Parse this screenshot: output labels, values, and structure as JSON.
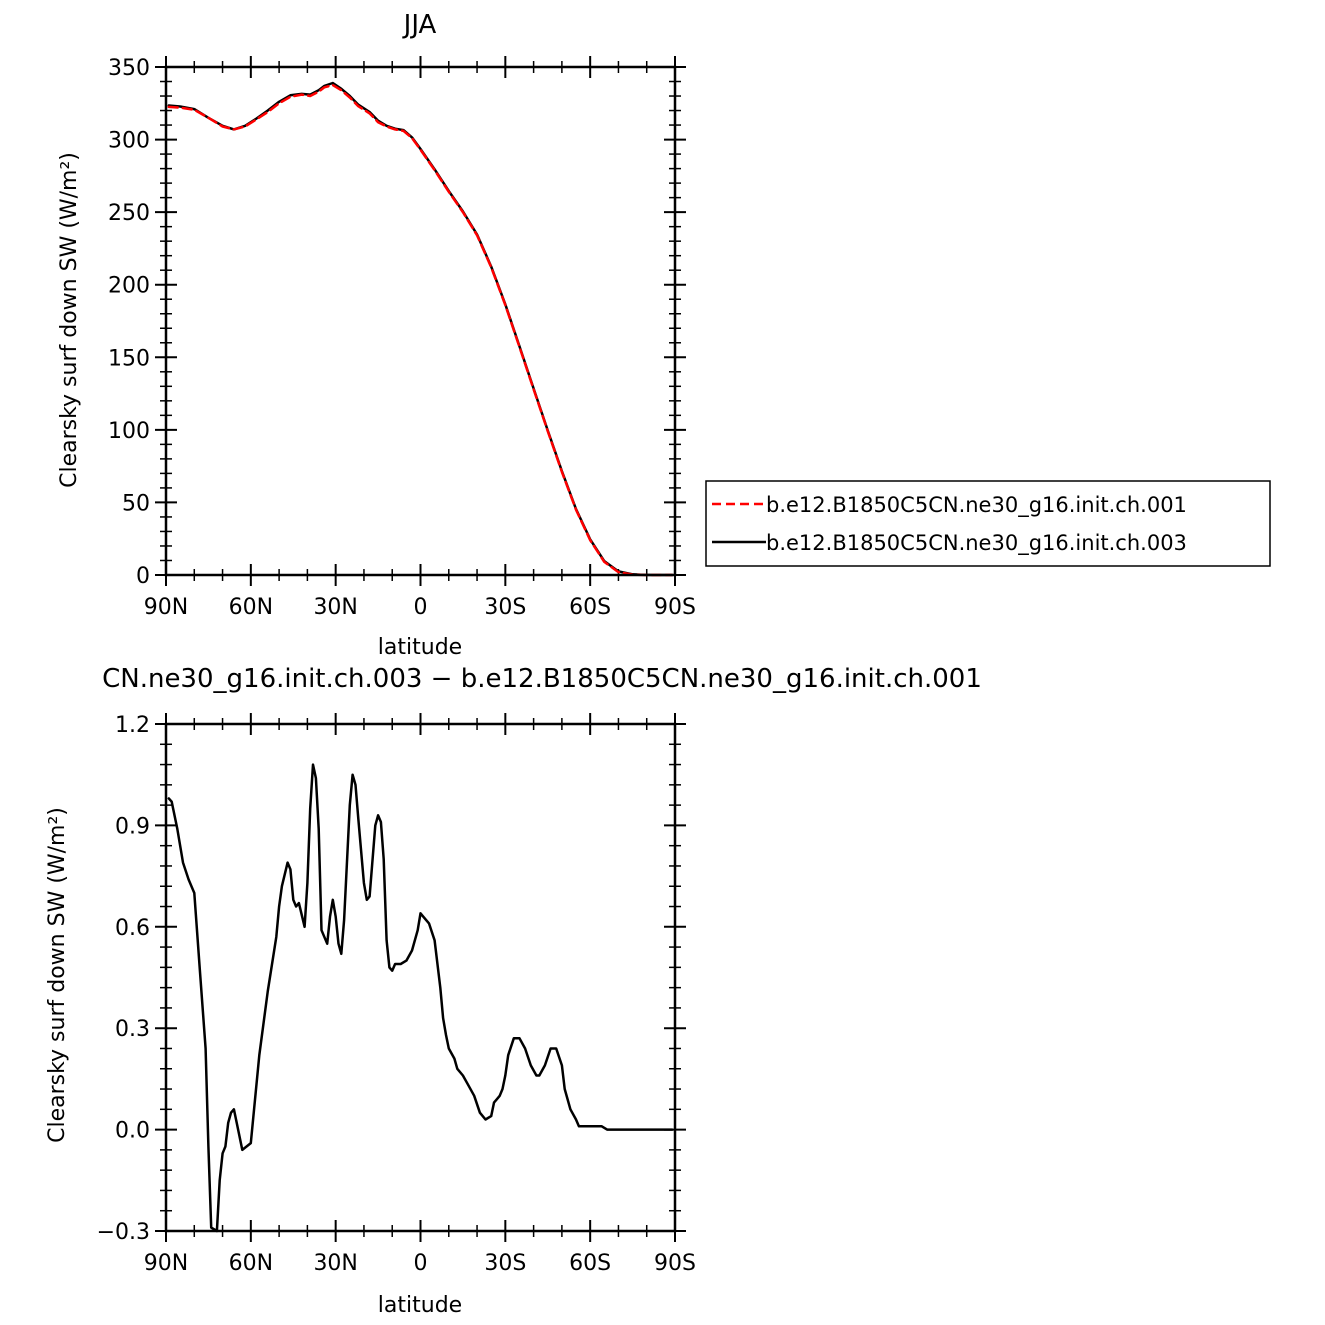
{
  "chart_data": [
    {
      "type": "line",
      "title": "JJA",
      "xlabel": "latitude",
      "ylabel": "Clearsky surf down SW (W/m²)",
      "x_tick_labels": [
        "90N",
        "60N",
        "30N",
        "0",
        "30S",
        "60S",
        "90S"
      ],
      "x_tick_values": [
        90,
        60,
        30,
        0,
        -30,
        -60,
        -90
      ],
      "y_tick_labels": [
        "0",
        "50",
        "100",
        "150",
        "200",
        "250",
        "300",
        "350"
      ],
      "y_tick_values": [
        0,
        50,
        100,
        150,
        200,
        250,
        300,
        350
      ],
      "xlim": [
        90,
        -90
      ],
      "ylim": [
        0,
        350
      ],
      "legend_placement": "right",
      "series": [
        {
          "name": "b.e12.B1850C5CN.ne30_g16.init.ch.001",
          "color": "#ff0000",
          "dash": "dashed",
          "x": [
            89,
            85,
            80,
            75,
            70,
            66,
            62,
            58,
            54,
            50,
            46,
            42,
            39,
            36,
            34,
            31,
            28,
            25,
            22,
            18,
            15,
            12,
            9,
            6,
            3,
            0,
            -5,
            -10,
            -15,
            -20,
            -25,
            -30,
            -35,
            -40,
            -45,
            -50,
            -55,
            -60,
            -65,
            -70,
            -75,
            -78,
            -82,
            -86,
            -89
          ],
          "y": [
            322.5,
            322,
            320.5,
            315,
            309,
            307,
            309,
            314,
            319,
            325,
            329.5,
            331,
            330,
            333,
            336,
            337.5,
            334,
            329,
            323,
            318,
            312,
            309,
            307,
            306,
            301,
            293,
            279,
            264,
            250,
            234,
            212,
            186,
            157,
            128,
            99,
            71,
            45,
            24,
            9,
            2,
            0.3,
            0.1,
            0,
            0,
            0
          ]
        },
        {
          "name": "b.e12.B1850C5CN.ne30_g16.init.ch.003",
          "color": "#000000",
          "dash": "solid",
          "x": [
            89,
            85,
            80,
            75,
            70,
            66,
            62,
            58,
            54,
            50,
            46,
            42,
            39,
            36,
            34,
            31,
            28,
            25,
            22,
            18,
            15,
            12,
            9,
            6,
            3,
            0,
            -5,
            -10,
            -15,
            -20,
            -25,
            -30,
            -35,
            -40,
            -45,
            -50,
            -55,
            -60,
            -65,
            -70,
            -75,
            -78,
            -82,
            -86,
            -89
          ],
          "y": [
            323.5,
            322.8,
            321,
            315,
            309.5,
            307,
            309.5,
            314.5,
            320,
            326,
            330.5,
            331.5,
            331,
            334,
            337,
            339,
            335,
            330,
            324,
            319,
            313,
            309.5,
            307.5,
            306.5,
            301.5,
            293.5,
            279.5,
            264.5,
            250.5,
            234.5,
            212.5,
            186.5,
            157.5,
            128.5,
            99.5,
            71.5,
            45.5,
            24.5,
            9.5,
            2.5,
            0.5,
            0.2,
            0,
            0,
            0
          ]
        }
      ]
    },
    {
      "type": "line",
      "title": "CN.ne30_g16.init.ch.003 − b.e12.B1850C5CN.ne30_g16.init.ch.001",
      "xlabel": "latitude",
      "ylabel": "Clearsky surf down SW (W/m²)",
      "x_tick_labels": [
        "90N",
        "60N",
        "30N",
        "0",
        "30S",
        "60S",
        "90S"
      ],
      "x_tick_values": [
        90,
        60,
        30,
        0,
        -30,
        -60,
        -90
      ],
      "y_tick_labels": [
        "−0.3",
        "0.0",
        "0.3",
        "0.6",
        "0.9",
        "1.2"
      ],
      "y_tick_values": [
        -0.3,
        0,
        0.3,
        0.6,
        0.9,
        1.2
      ],
      "xlim": [
        90,
        -90
      ],
      "ylim": [
        -0.3,
        1.2
      ],
      "series": [
        {
          "name": "",
          "color": "#000000",
          "dash": "solid",
          "x": [
            89,
            88,
            86,
            84,
            82,
            80,
            78,
            76,
            75,
            74,
            72,
            71,
            70,
            69,
            68,
            67,
            66,
            65,
            63,
            60,
            57,
            54,
            51,
            50,
            49,
            47,
            46,
            45,
            44,
            43,
            41,
            40,
            39,
            38,
            37,
            36,
            35,
            33,
            32,
            31,
            30,
            29,
            28,
            27,
            25,
            24,
            23,
            22,
            20,
            19,
            18,
            16,
            15,
            14,
            13,
            12,
            11,
            10,
            9,
            7,
            5,
            3,
            1,
            0,
            -1,
            -3,
            -5,
            -7,
            -8,
            -9,
            -10,
            -12,
            -13,
            -15,
            -17,
            -19,
            -21,
            -23,
            -25,
            -26,
            -27,
            -28,
            -29,
            -30,
            -31,
            -33,
            -35,
            -37,
            -39,
            -41,
            -42,
            -44,
            -46,
            -48,
            -50,
            -51,
            -53,
            -55,
            -56,
            -58,
            -60,
            -62,
            -64,
            -66,
            -68,
            -70,
            -72,
            -75,
            -80,
            -85,
            -89
          ],
          "y": [
            0.98,
            0.97,
            0.89,
            0.79,
            0.74,
            0.7,
            0.47,
            0.24,
            -0.05,
            -0.29,
            -0.3,
            -0.15,
            -0.07,
            -0.05,
            0.02,
            0.05,
            0.06,
            0.02,
            -0.06,
            -0.04,
            0.22,
            0.41,
            0.57,
            0.66,
            0.72,
            0.79,
            0.77,
            0.68,
            0.66,
            0.67,
            0.6,
            0.73,
            0.95,
            1.08,
            1.04,
            0.89,
            0.59,
            0.55,
            0.63,
            0.68,
            0.63,
            0.55,
            0.52,
            0.62,
            0.96,
            1.05,
            1.02,
            0.92,
            0.73,
            0.68,
            0.69,
            0.9,
            0.93,
            0.91,
            0.8,
            0.56,
            0.48,
            0.47,
            0.49,
            0.49,
            0.5,
            0.53,
            0.59,
            0.64,
            0.63,
            0.61,
            0.56,
            0.42,
            0.33,
            0.28,
            0.24,
            0.21,
            0.18,
            0.16,
            0.13,
            0.1,
            0.05,
            0.03,
            0.04,
            0.08,
            0.09,
            0.1,
            0.12,
            0.16,
            0.22,
            0.27,
            0.27,
            0.24,
            0.19,
            0.16,
            0.16,
            0.19,
            0.24,
            0.24,
            0.19,
            0.12,
            0.06,
            0.03,
            0.01,
            0.01,
            0.01,
            0.01,
            0.01,
            0.0,
            0.0,
            0.0,
            0.0,
            0.0,
            0.0,
            0.0,
            0.0
          ]
        }
      ]
    }
  ]
}
